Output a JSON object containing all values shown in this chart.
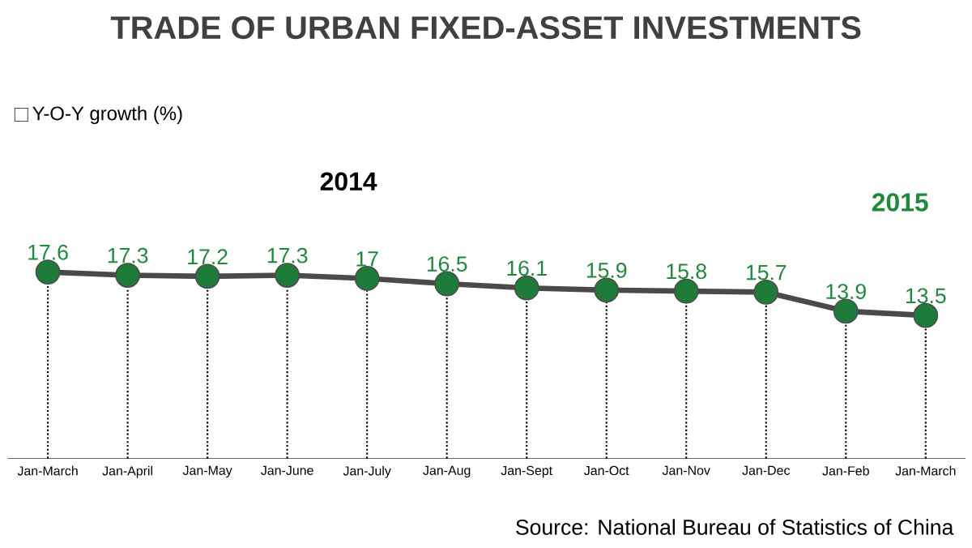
{
  "chart_data": {
    "type": "line",
    "title": "TRADE OF URBAN FIXED-ASSET INVESTMENTS",
    "categories": [
      "Jan-March",
      "Jan-April",
      "Jan-May",
      "Jan-June",
      "Jan-July",
      "Jan-Aug",
      "Jan-Sept",
      "Jan-Oct",
      "Jan-Nov",
      "Jan-Dec",
      "Jan-Feb",
      "Jan-March"
    ],
    "series": [
      {
        "name": "Y-O-Y growth (%)",
        "color": "#4a4a4a",
        "values": [
          17.6,
          17.3,
          17.2,
          17.3,
          17,
          16.5,
          16.1,
          15.9,
          15.8,
          15.7,
          13.9,
          13.5
        ]
      }
    ],
    "marker": "circle",
    "data_labels": true,
    "legend": "top left",
    "grid": "x",
    "annotations": [
      "2014",
      "2015",
      "Source: National Bureau of Statistics of China"
    ]
  }
}
